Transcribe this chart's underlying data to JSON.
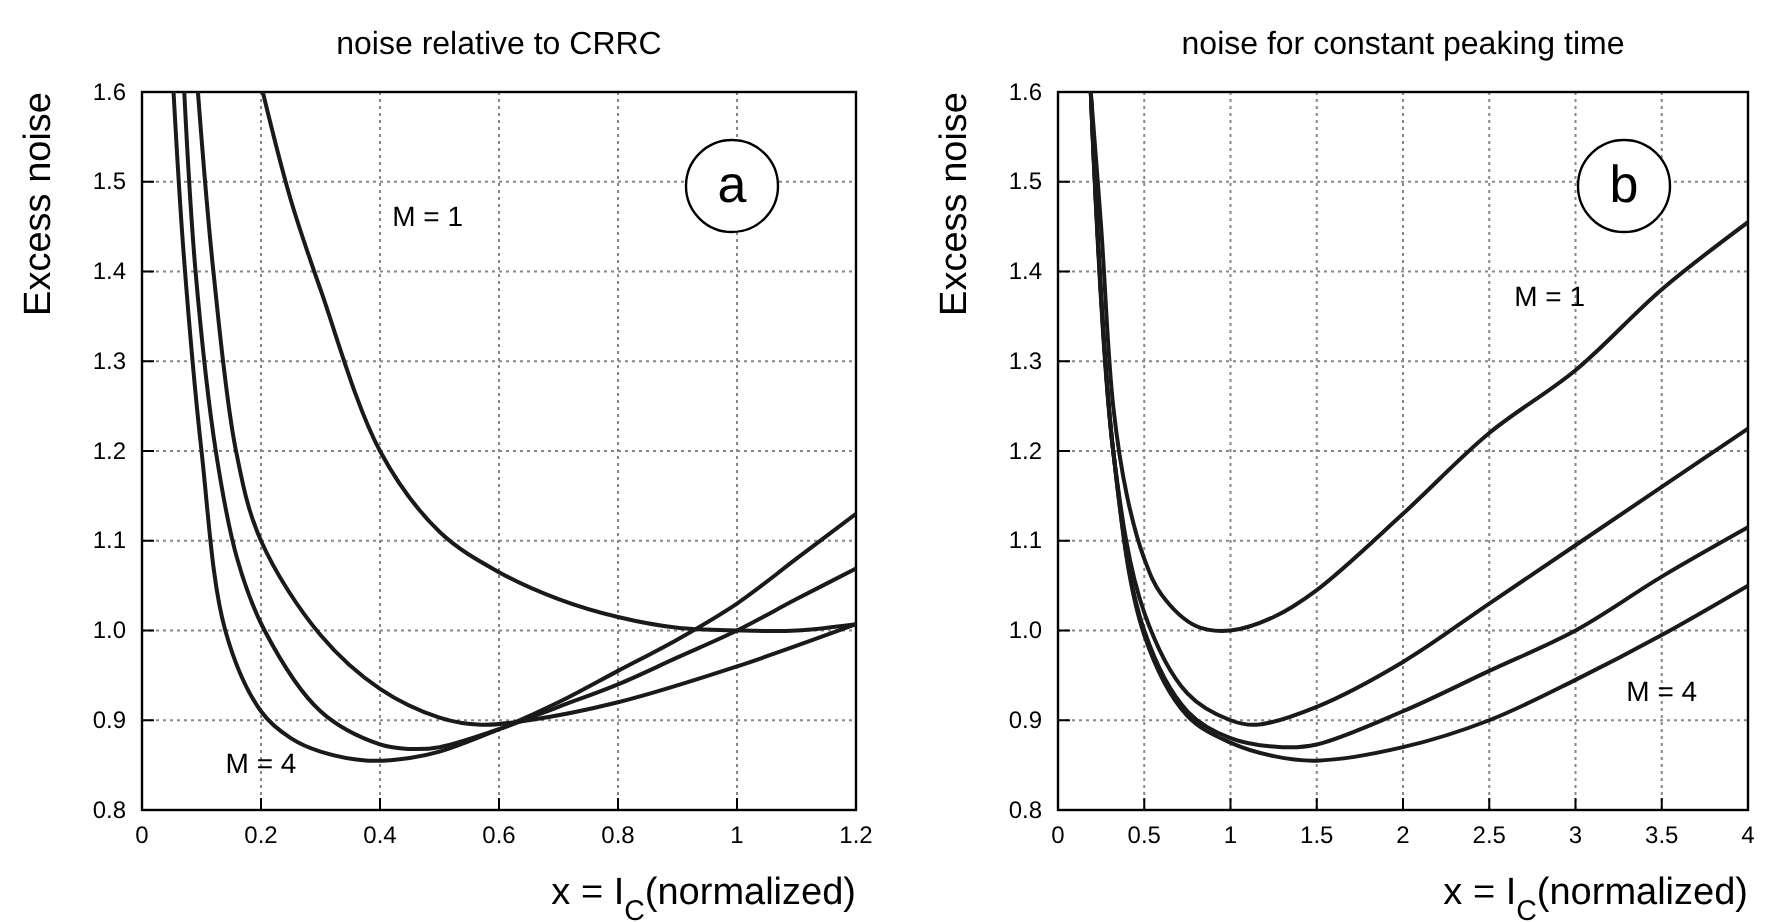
{
  "chart_data": [
    {
      "type": "line",
      "title": "noise relative to CRRC",
      "xlabel": "x = I$_{C}$(normalized)",
      "ylabel": "Excess noise",
      "xlim": [
        0,
        1.2
      ],
      "xticks": [
        0,
        0.2,
        0.4,
        0.6,
        0.8,
        1,
        1.2
      ],
      "ylim": [
        0.8,
        1.6
      ],
      "yticks": [
        0.8,
        0.9,
        {
          "value": 1.0,
          "label": "1.0"
        },
        1.1,
        1.2,
        1.3,
        1.4,
        1.5,
        1.6
      ],
      "grid": true,
      "line_style": "solid",
      "marker": "none",
      "annotations": [
        "a",
        "M = 1",
        "M = 4"
      ],
      "series": [
        {
          "color": "#1a1a1a",
          "x": [
            0.203,
            0.25,
            0.3,
            0.4,
            0.5,
            0.6,
            0.7,
            0.8,
            0.9,
            1.0,
            1.1,
            1.2
          ],
          "values": [
            1.6,
            1.48,
            1.38,
            1.2,
            1.11,
            1.065,
            1.035,
            1.015,
            1.003,
            1.0,
            1.0,
            1.007
          ]
        },
        {
          "color": "#1a1a1a",
          "x": [
            0.094,
            0.12,
            0.158,
            0.2,
            0.3,
            0.4,
            0.5,
            0.57,
            0.65,
            0.8,
            1.0,
            1.2
          ],
          "values": [
            1.6,
            1.4,
            1.2,
            1.1,
            0.995,
            0.935,
            0.903,
            0.895,
            0.9,
            0.92,
            0.96,
            1.007
          ]
        },
        {
          "color": "#1a1a1a",
          "x": [
            0.071,
            0.09,
            0.124,
            0.16,
            0.206,
            0.3,
            0.4,
            0.45,
            0.5,
            0.6,
            0.7,
            0.8,
            0.9,
            1.0,
            1.1,
            1.2
          ],
          "values": [
            1.6,
            1.4,
            1.2,
            1.08,
            1.0,
            0.91,
            0.873,
            0.868,
            0.87,
            0.89,
            0.915,
            0.94,
            0.97,
            1.0,
            1.035,
            1.069
          ]
        },
        {
          "color": "#1a1a1a",
          "x": [
            0.053,
            0.07,
            0.1,
            0.14,
            0.2,
            0.25,
            0.3,
            0.38,
            0.45,
            0.5,
            0.6,
            0.7,
            0.8,
            0.9,
            1.0,
            1.1,
            1.2
          ],
          "values": [
            1.6,
            1.42,
            1.2,
            1.0,
            0.91,
            0.88,
            0.865,
            0.855,
            0.858,
            0.865,
            0.89,
            0.92,
            0.955,
            0.99,
            1.03,
            1.08,
            1.13
          ]
        }
      ]
    },
    {
      "type": "line",
      "title": "noise for constant peaking time",
      "xlabel": "x = I$_{C}$(normalized)",
      "ylabel": "Excess noise",
      "xlim": [
        0,
        4
      ],
      "xticks": [
        0,
        0.5,
        1,
        1.5,
        2,
        2.5,
        3,
        3.5,
        4
      ],
      "ylim": [
        0.8,
        1.6
      ],
      "yticks": [
        0.8,
        0.9,
        {
          "value": 1.0,
          "label": "1.0"
        },
        1.1,
        1.2,
        1.3,
        1.4,
        1.5,
        1.6
      ],
      "grid": true,
      "line_style": "solid",
      "marker": "none",
      "annotations": [
        "b",
        "M = 1",
        "M = 4"
      ],
      "series": [
        {
          "color": "#1a1a1a",
          "x": [
            0.19,
            0.25,
            0.32,
            0.4,
            0.5,
            0.6,
            0.8,
            1.0,
            1.25,
            1.5,
            2,
            2.5,
            3,
            3.5,
            4
          ],
          "values": [
            1.6,
            1.45,
            1.25,
            1.15,
            1.08,
            1.04,
            1.005,
            1.0,
            1.015,
            1.045,
            1.13,
            1.22,
            1.29,
            1.38,
            1.455
          ]
        },
        {
          "color": "#1a1a1a",
          "x": [
            0.19,
            0.32,
            0.5,
            0.75,
            1.0,
            1.15,
            1.5,
            2,
            2.5,
            3,
            3.5,
            4
          ],
          "values": [
            1.6,
            1.2,
            1.02,
            0.93,
            0.9,
            0.895,
            0.915,
            0.965,
            1.03,
            1.095,
            1.16,
            1.225
          ]
        },
        {
          "color": "#1a1a1a",
          "x": [
            0.19,
            0.32,
            0.5,
            0.75,
            1.0,
            1.3,
            1.5,
            2,
            2.5,
            3,
            3.5,
            4
          ],
          "values": [
            1.6,
            1.2,
            1.0,
            0.91,
            0.88,
            0.87,
            0.873,
            0.91,
            0.955,
            1.0,
            1.06,
            1.115
          ]
        },
        {
          "color": "#1a1a1a",
          "x": [
            0.19,
            0.32,
            0.5,
            0.75,
            1.0,
            1.25,
            1.5,
            2,
            2.5,
            3,
            3.5,
            4
          ],
          "values": [
            1.6,
            1.2,
            0.995,
            0.905,
            0.875,
            0.86,
            0.855,
            0.87,
            0.9,
            0.945,
            0.995,
            1.05
          ]
        }
      ]
    }
  ]
}
